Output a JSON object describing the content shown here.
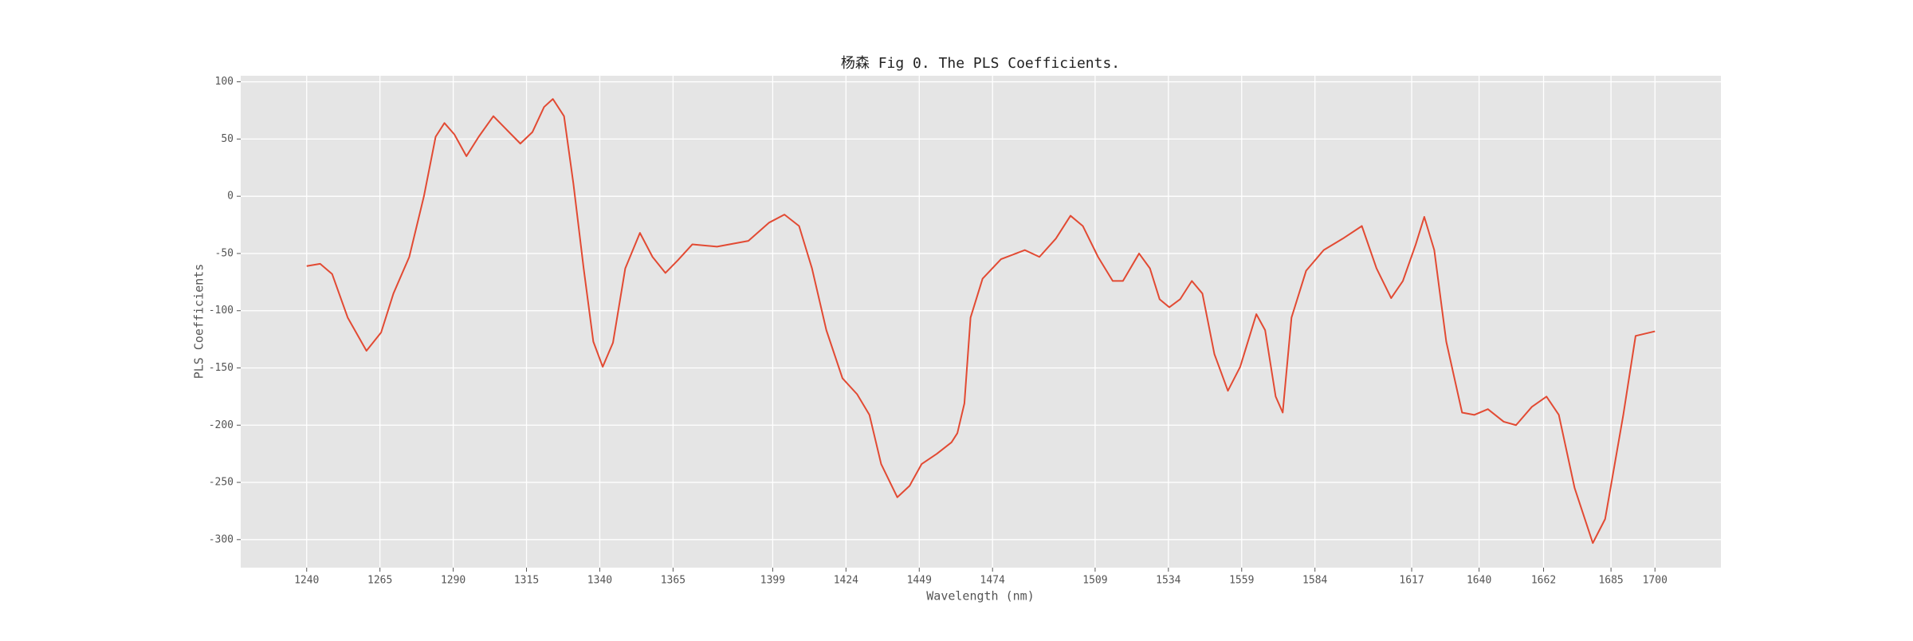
{
  "chart_data": {
    "type": "line",
    "title": "杨森 Fig 0. The PLS Coefficients.",
    "xlabel": "Wavelength (nm)",
    "ylabel": "PLS Coefficients",
    "color": "#e24a33",
    "grid": true,
    "xlim": [
      1217.5,
      1722.5
    ],
    "ylim": [
      -324.5,
      105.3
    ],
    "xticks": [
      1240,
      1265,
      1290,
      1315,
      1340,
      1365,
      1399,
      1424,
      1449,
      1474,
      1509,
      1534,
      1559,
      1584,
      1617,
      1640,
      1662,
      1685,
      1700
    ],
    "yticks": [
      100,
      50,
      0,
      -50,
      -100,
      -150,
      -200,
      -250,
      -300
    ],
    "x": [
      1240,
      1244.6,
      1248.7,
      1254,
      1260.4,
      1265.4,
      1269.6,
      1275,
      1280,
      1284,
      1287,
      1290.4,
      1294.5,
      1298.7,
      1303.7,
      1307.9,
      1312.9,
      1317,
      1321,
      1324,
      1327.8,
      1331,
      1334.5,
      1337.8,
      1341,
      1344.5,
      1348.7,
      1353.7,
      1358,
      1362.4,
      1366.6,
      1371.6,
      1380,
      1390.7,
      1397.8,
      1403,
      1408,
      1412.4,
      1417.3,
      1422.8,
      1427.8,
      1432,
      1436,
      1441.5,
      1445.7,
      1449.8,
      1455,
      1460,
      1462,
      1464.4,
      1466.5,
      1470.6,
      1476.9,
      1485,
      1490,
      1495.6,
      1500.6,
      1504.8,
      1510,
      1515,
      1518.5,
      1524,
      1527.7,
      1531,
      1534.3,
      1538,
      1542,
      1545.6,
      1549.7,
      1554.3,
      1558.5,
      1564,
      1567,
      1570.6,
      1573,
      1576,
      1581,
      1587,
      1593.5,
      1600,
      1605,
      1610,
      1614,
      1618.4,
      1621.3,
      1624.7,
      1628.8,
      1634.2,
      1638.4,
      1643,
      1648.4,
      1652.6,
      1658,
      1663,
      1667.2,
      1672.6,
      1678.8,
      1683,
      1689.2,
      1693.4,
      1700
    ],
    "values": [
      -61,
      -59,
      -68,
      -106,
      -135,
      -119,
      -85,
      -53,
      0,
      52,
      64,
      54,
      35,
      52,
      70,
      59,
      46,
      56,
      78,
      85,
      70,
      11,
      -63,
      -127,
      -149,
      -128,
      -63,
      -32,
      -53,
      -67,
      -56,
      -42,
      -44,
      -39,
      -23,
      -16,
      -26,
      -63,
      -117,
      -159,
      -173,
      -191,
      -234,
      -263,
      -253,
      -234,
      -225,
      -215,
      -207,
      -181,
      -106,
      -72,
      -55,
      -47,
      -53,
      -37,
      -17,
      -26,
      -53,
      -74,
      -74,
      -50,
      -63,
      -90,
      -97,
      -90,
      -74,
      -85,
      -138,
      -170,
      -149,
      -103,
      -117,
      -175,
      -189,
      -106,
      -65,
      -47,
      -37,
      -26,
      -63,
      -89,
      -74,
      -42,
      -18,
      -47,
      -127,
      -189,
      -191,
      -186,
      -197,
      -200,
      -184,
      -175,
      -191,
      -255,
      -303,
      -282,
      -191,
      -122,
      -118
    ]
  }
}
